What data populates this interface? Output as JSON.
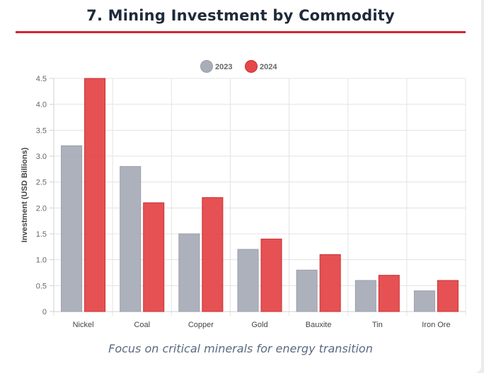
{
  "page": {
    "title": "7. Mining Investment by Commodity",
    "subtitle": "Focus on critical minerals for energy transition"
  },
  "colors": {
    "accent": "#d7262b",
    "series_2023": "#a9adb8",
    "series_2024": "#e5484a"
  },
  "chart_data": {
    "type": "bar",
    "title": "",
    "xlabel": "",
    "ylabel": "Investment (USD Billions)",
    "ylim": [
      0,
      4.5
    ],
    "yticks": [
      "0",
      "0.5",
      "1.0",
      "1.5",
      "2.0",
      "2.5",
      "3.0",
      "3.5",
      "4.0",
      "4.5"
    ],
    "grid": true,
    "legend_position": "top-center",
    "categories": [
      "Nickel",
      "Coal",
      "Copper",
      "Gold",
      "Bauxite",
      "Tin",
      "Iron Ore"
    ],
    "series": [
      {
        "name": "2023",
        "color": "#a9adb8",
        "values": [
          3.2,
          2.8,
          1.5,
          1.2,
          0.8,
          0.6,
          0.4
        ]
      },
      {
        "name": "2024",
        "color": "#e5484a",
        "values": [
          4.5,
          2.1,
          2.2,
          1.4,
          1.1,
          0.7,
          0.6
        ]
      }
    ]
  }
}
